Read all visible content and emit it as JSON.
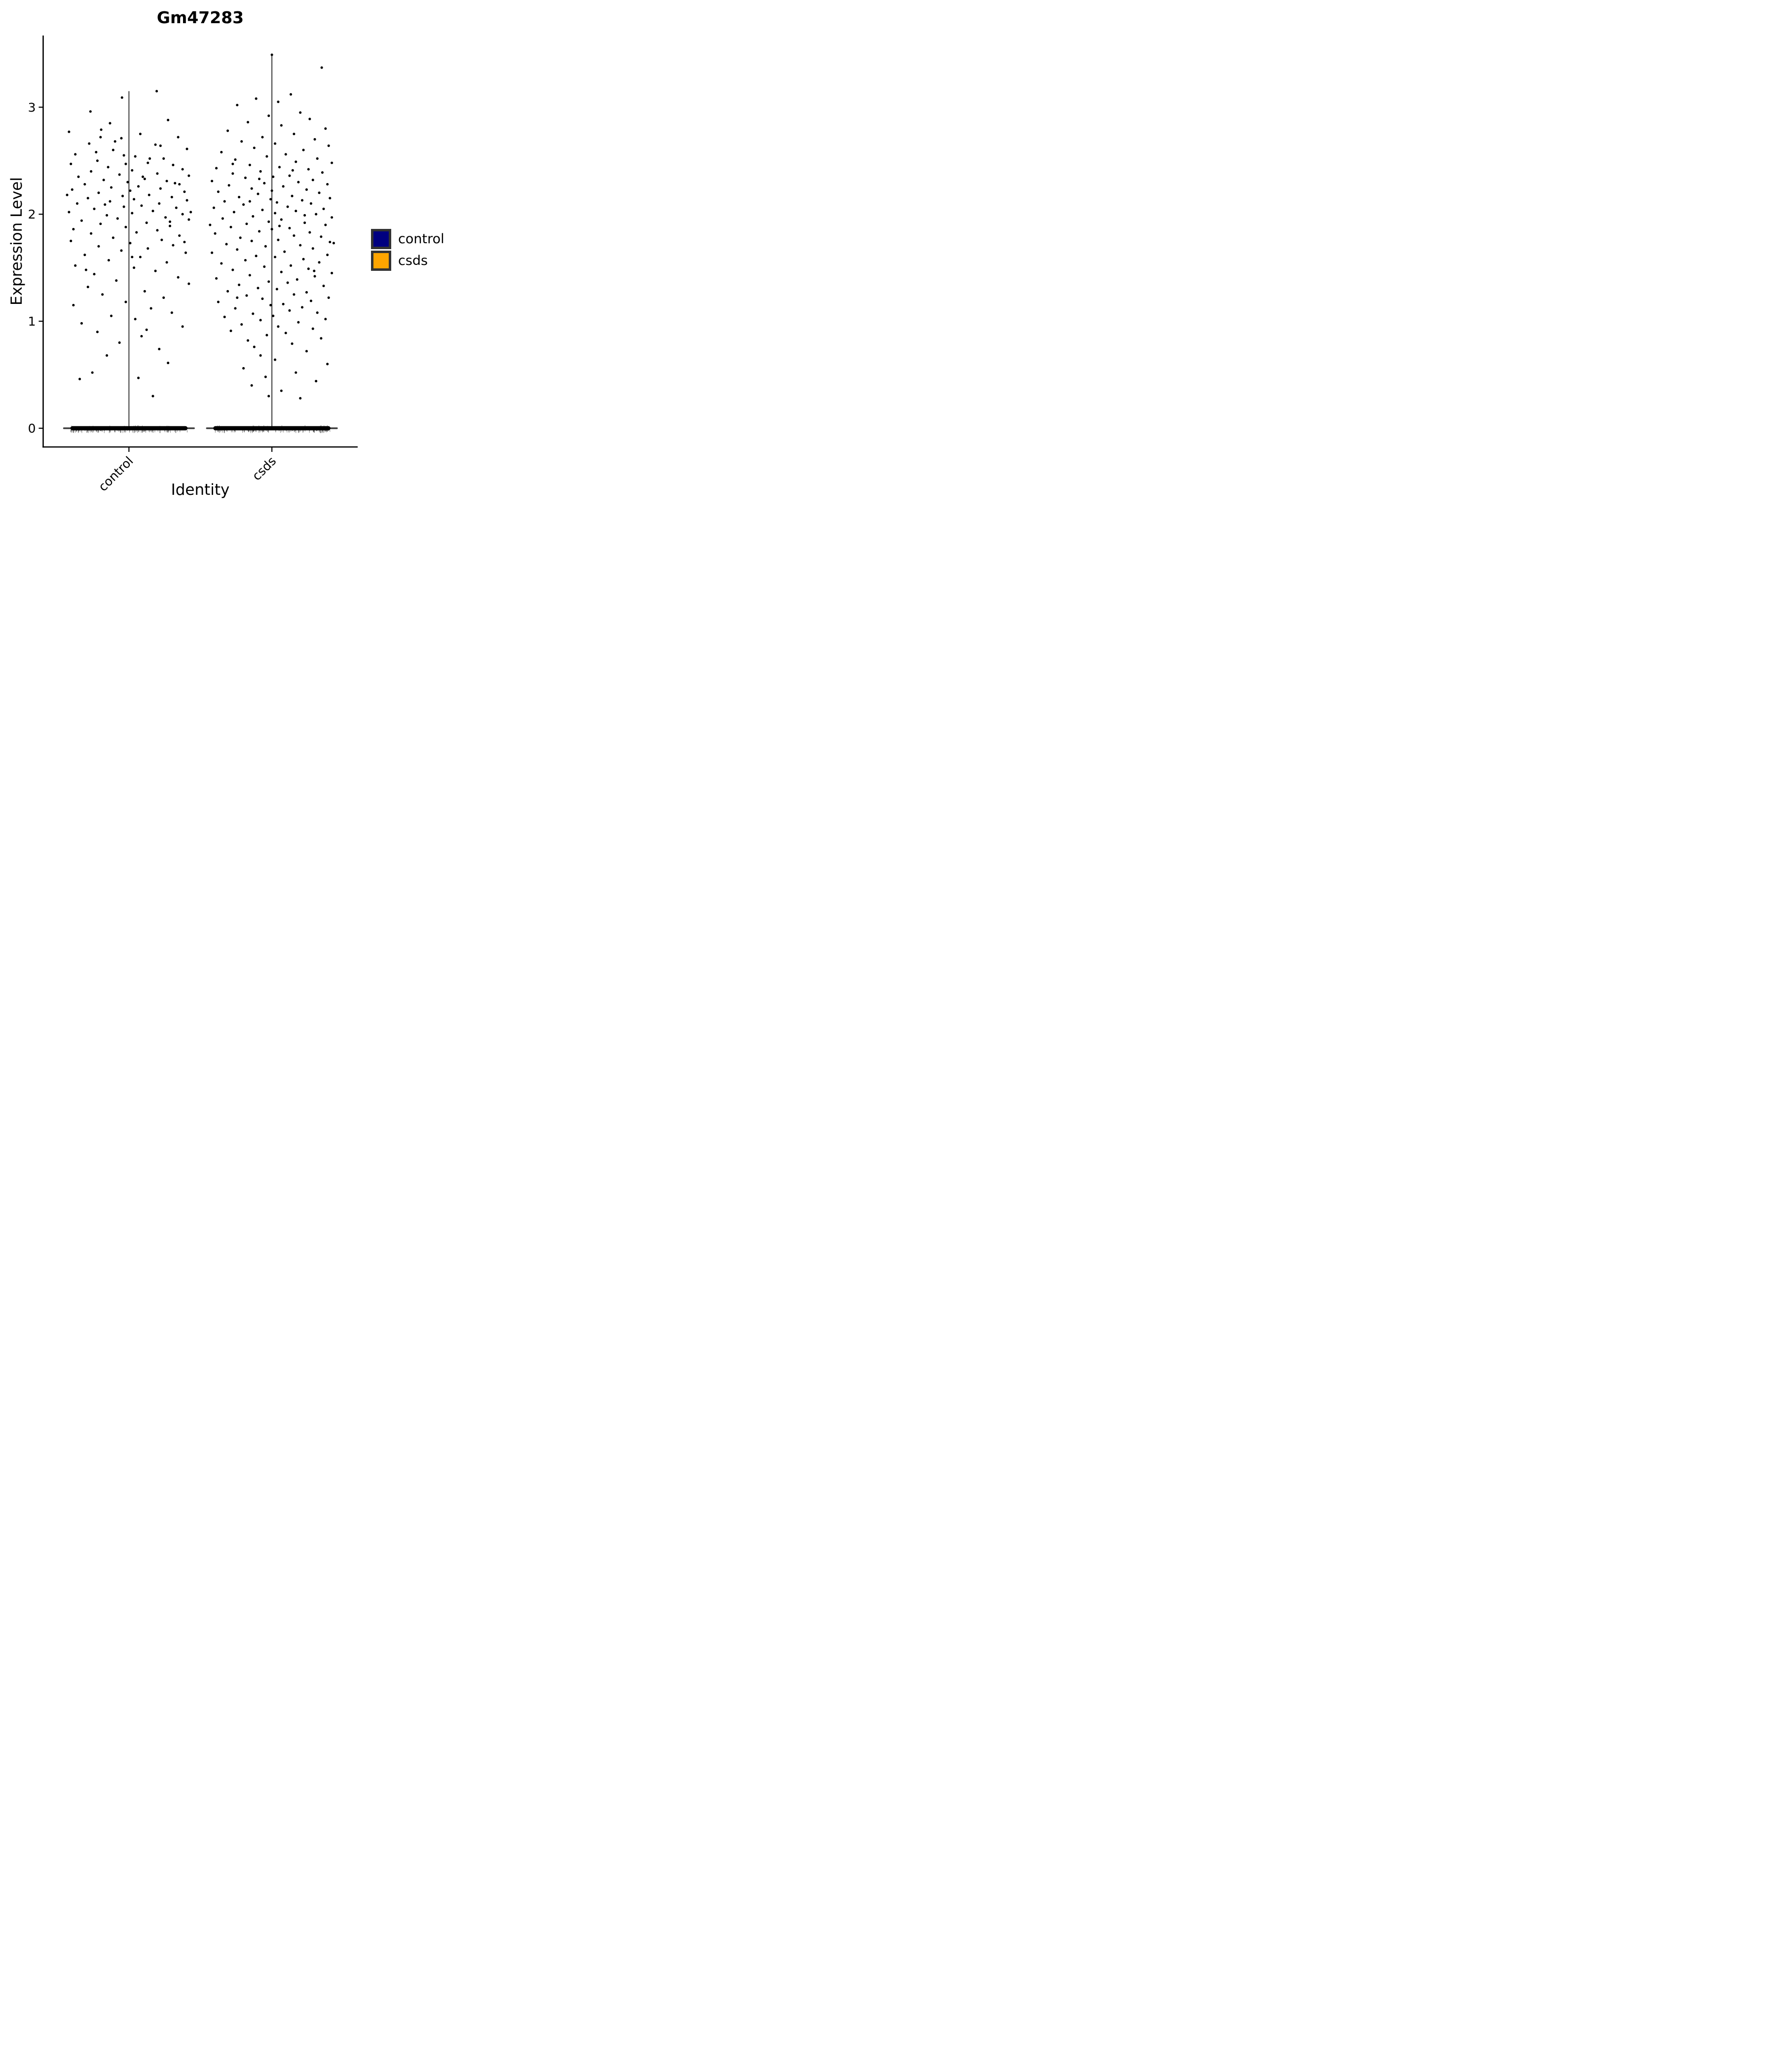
{
  "chart_data": {
    "type": "violin-jitter",
    "title": "Gm47283",
    "xlabel": "Identity",
    "ylabel": "Expression Level",
    "categories": [
      "control",
      "csds"
    ],
    "y_ticks": [
      "0",
      "1",
      "2",
      "3"
    ],
    "y_tick_values": [
      0,
      1,
      2,
      3
    ],
    "ylim": [
      -0.175,
      3.67
    ],
    "xlim": [
      0.4,
      2.6
    ],
    "grid": false,
    "legend_position": "right",
    "colors": {
      "points": "#000000",
      "violin_line": "#3A3A3A",
      "zero_band": "#000000",
      "axis": "#000000"
    },
    "legend": [
      {
        "label": "control",
        "color": "#000080"
      },
      {
        "label": "csds",
        "color": "#FFA500"
      }
    ],
    "groups": [
      {
        "name": "control",
        "position": 1,
        "violin_halfwidth": 0.455,
        "zero_band_halfwidth": 0.41,
        "spine_max": 3.15,
        "has_mass_at_zero": true,
        "points": [
          [
            -0.61,
            2.96
          ],
          [
            0.44,
            3.15
          ],
          [
            0.62,
            2.88
          ],
          [
            -0.95,
            2.77
          ],
          [
            -0.44,
            2.79
          ],
          [
            0.18,
            2.75
          ],
          [
            0.78,
            2.72
          ],
          [
            -0.12,
            2.71
          ],
          [
            -0.63,
            2.66
          ],
          [
            0.42,
            2.65
          ],
          [
            0.92,
            2.61
          ],
          [
            -0.25,
            2.6
          ],
          [
            -0.85,
            2.56
          ],
          [
            0.1,
            2.54
          ],
          [
            0.55,
            2.52
          ],
          [
            -0.5,
            2.5
          ],
          [
            0.3,
            2.48
          ],
          [
            -0.05,
            2.47
          ],
          [
            0.7,
            2.46
          ],
          [
            -0.92,
            2.47
          ],
          [
            -0.33,
            2.44
          ],
          [
            0.85,
            2.42
          ],
          [
            0.05,
            2.41
          ],
          [
            -0.6,
            2.4
          ],
          [
            0.45,
            2.38
          ],
          [
            -0.15,
            2.37
          ],
          [
            0.95,
            2.36
          ],
          [
            -0.8,
            2.35
          ],
          [
            0.25,
            2.33
          ],
          [
            -0.4,
            2.32
          ],
          [
            0.6,
            2.31
          ],
          [
            -0.02,
            2.3
          ],
          [
            0.8,
            2.28
          ],
          [
            -0.7,
            2.28
          ],
          [
            0.15,
            2.26
          ],
          [
            -0.28,
            2.25
          ],
          [
            0.5,
            2.24
          ],
          [
            -0.9,
            2.23
          ],
          [
            0.02,
            2.22
          ],
          [
            0.88,
            2.21
          ],
          [
            -0.48,
            2.2
          ],
          [
            0.32,
            2.18
          ],
          [
            -0.1,
            2.17
          ],
          [
            0.68,
            2.16
          ],
          [
            -0.65,
            2.15
          ],
          [
            0.08,
            2.14
          ],
          [
            0.92,
            2.13
          ],
          [
            -0.3,
            2.12
          ],
          [
            0.48,
            2.1
          ],
          [
            -0.82,
            2.1
          ],
          [
            0.2,
            2.08
          ],
          [
            -0.08,
            2.07
          ],
          [
            0.75,
            2.06
          ],
          [
            -0.55,
            2.05
          ],
          [
            0.38,
            2.03
          ],
          [
            -0.95,
            2.02
          ],
          [
            0.05,
            2.01
          ],
          [
            0.85,
            2.0
          ],
          [
            -0.35,
            1.99
          ],
          [
            0.58,
            1.97
          ],
          [
            -0.18,
            1.96
          ],
          [
            0.95,
            1.95
          ],
          [
            -0.75,
            1.94
          ],
          [
            0.28,
            1.92
          ],
          [
            -0.45,
            1.91
          ],
          [
            0.65,
            1.89
          ],
          [
            -0.05,
            1.88
          ],
          [
            -0.88,
            1.86
          ],
          [
            0.45,
            1.85
          ],
          [
            0.12,
            1.83
          ],
          [
            -0.6,
            1.82
          ],
          [
            0.8,
            1.8
          ],
          [
            -0.25,
            1.78
          ],
          [
            0.52,
            1.76
          ],
          [
            -0.92,
            1.75
          ],
          [
            0.02,
            1.73
          ],
          [
            0.7,
            1.71
          ],
          [
            -0.48,
            1.7
          ],
          [
            0.3,
            1.68
          ],
          [
            -0.12,
            1.66
          ],
          [
            0.9,
            1.64
          ],
          [
            -0.7,
            1.62
          ],
          [
            0.18,
            1.6
          ],
          [
            -0.32,
            1.57
          ],
          [
            0.6,
            1.55
          ],
          [
            -0.85,
            1.52
          ],
          [
            0.08,
            1.5
          ],
          [
            0.42,
            1.47
          ],
          [
            -0.55,
            1.44
          ],
          [
            0.78,
            1.41
          ],
          [
            -0.2,
            1.38
          ],
          [
            0.95,
            1.35
          ],
          [
            -0.65,
            1.32
          ],
          [
            0.25,
            1.28
          ],
          [
            -0.42,
            1.25
          ],
          [
            0.55,
            1.22
          ],
          [
            -0.05,
            1.18
          ],
          [
            -0.88,
            1.15
          ],
          [
            0.35,
            1.12
          ],
          [
            0.68,
            1.08
          ],
          [
            -0.28,
            1.05
          ],
          [
            0.1,
            1.02
          ],
          [
            -0.75,
            0.98
          ],
          [
            0.85,
            0.95
          ],
          [
            -0.5,
            0.9
          ],
          [
            0.2,
            0.86
          ],
          [
            -0.15,
            0.8
          ],
          [
            0.48,
            0.74
          ],
          [
            -0.35,
            0.68
          ],
          [
            0.62,
            0.61
          ],
          [
            -0.58,
            0.52
          ],
          [
            0.15,
            0.47
          ],
          [
            -0.78,
            0.46
          ],
          [
            0.38,
            0.3
          ],
          [
            0.05,
            1.6
          ],
          [
            -0.38,
            2.09
          ],
          [
            0.22,
            2.35
          ],
          [
            -0.52,
            2.58
          ],
          [
            0.65,
            1.93
          ],
          [
            -0.98,
            2.18
          ],
          [
            0.33,
            2.52
          ],
          [
            -0.22,
            2.68
          ],
          [
            0.73,
            2.29
          ],
          [
            0.5,
            2.64
          ],
          [
            -0.68,
            1.48
          ],
          [
            0.88,
            1.74
          ],
          [
            -0.08,
            2.55
          ],
          [
            0.28,
            0.92
          ],
          [
            -0.45,
            2.72
          ],
          [
            0.98,
            2.02
          ],
          [
            -0.11,
            3.09
          ],
          [
            -0.3,
            2.85
          ]
        ]
      },
      {
        "name": "csds",
        "position": 2,
        "violin_halfwidth": 0.455,
        "zero_band_halfwidth": 0.41,
        "spine_max": 3.49,
        "has_mass_at_zero": true,
        "points": [
          [
            0.0,
            3.49
          ],
          [
            0.79,
            3.37
          ],
          [
            0.3,
            3.12
          ],
          [
            -0.25,
            3.08
          ],
          [
            0.1,
            3.05
          ],
          [
            -0.55,
            3.02
          ],
          [
            0.45,
            2.95
          ],
          [
            -0.05,
            2.92
          ],
          [
            0.6,
            2.89
          ],
          [
            -0.38,
            2.86
          ],
          [
            0.15,
            2.83
          ],
          [
            0.85,
            2.8
          ],
          [
            -0.7,
            2.78
          ],
          [
            0.35,
            2.75
          ],
          [
            -0.15,
            2.72
          ],
          [
            0.68,
            2.7
          ],
          [
            -0.48,
            2.68
          ],
          [
            0.05,
            2.66
          ],
          [
            0.9,
            2.64
          ],
          [
            -0.28,
            2.62
          ],
          [
            0.5,
            2.6
          ],
          [
            -0.8,
            2.58
          ],
          [
            0.22,
            2.56
          ],
          [
            -0.08,
            2.54
          ],
          [
            0.72,
            2.52
          ],
          [
            -0.58,
            2.51
          ],
          [
            0.38,
            2.49
          ],
          [
            0.95,
            2.48
          ],
          [
            -0.35,
            2.46
          ],
          [
            0.12,
            2.44
          ],
          [
            -0.88,
            2.43
          ],
          [
            0.58,
            2.42
          ],
          [
            -0.18,
            2.4
          ],
          [
            0.8,
            2.39
          ],
          [
            -0.62,
            2.38
          ],
          [
            0.28,
            2.36
          ],
          [
            0.02,
            2.35
          ],
          [
            -0.42,
            2.34
          ],
          [
            0.65,
            2.32
          ],
          [
            -0.95,
            2.31
          ],
          [
            0.42,
            2.3
          ],
          [
            -0.12,
            2.29
          ],
          [
            0.88,
            2.28
          ],
          [
            -0.68,
            2.27
          ],
          [
            0.18,
            2.26
          ],
          [
            -0.32,
            2.24
          ],
          [
            0.55,
            2.23
          ],
          [
            0.0,
            2.22
          ],
          [
            -0.85,
            2.21
          ],
          [
            0.75,
            2.2
          ],
          [
            -0.22,
            2.19
          ],
          [
            0.32,
            2.17
          ],
          [
            -0.52,
            2.16
          ],
          [
            0.92,
            2.15
          ],
          [
            -0.02,
            2.14
          ],
          [
            0.48,
            2.13
          ],
          [
            -0.75,
            2.12
          ],
          [
            0.08,
            2.11
          ],
          [
            0.62,
            2.1
          ],
          [
            -0.45,
            2.09
          ],
          [
            0.25,
            2.07
          ],
          [
            -0.92,
            2.06
          ],
          [
            0.82,
            2.05
          ],
          [
            -0.15,
            2.04
          ],
          [
            0.38,
            2.03
          ],
          [
            -0.6,
            2.02
          ],
          [
            0.05,
            2.01
          ],
          [
            0.7,
            2.0
          ],
          [
            -0.3,
            1.98
          ],
          [
            0.95,
            1.97
          ],
          [
            -0.78,
            1.96
          ],
          [
            0.15,
            1.95
          ],
          [
            -0.05,
            1.93
          ],
          [
            0.52,
            1.92
          ],
          [
            -0.4,
            1.91
          ],
          [
            0.85,
            1.9
          ],
          [
            -0.65,
            1.88
          ],
          [
            0.28,
            1.87
          ],
          [
            0.0,
            1.86
          ],
          [
            -0.2,
            1.84
          ],
          [
            0.6,
            1.83
          ],
          [
            -0.9,
            1.82
          ],
          [
            0.35,
            1.8
          ],
          [
            0.78,
            1.79
          ],
          [
            -0.5,
            1.78
          ],
          [
            0.1,
            1.76
          ],
          [
            -0.32,
            1.75
          ],
          [
            0.92,
            1.74
          ],
          [
            -0.72,
            1.72
          ],
          [
            0.45,
            1.71
          ],
          [
            -0.1,
            1.7
          ],
          [
            0.65,
            1.68
          ],
          [
            -0.55,
            1.67
          ],
          [
            0.2,
            1.65
          ],
          [
            -0.95,
            1.64
          ],
          [
            0.88,
            1.62
          ],
          [
            -0.25,
            1.61
          ],
          [
            0.05,
            1.6
          ],
          [
            0.5,
            1.58
          ],
          [
            -0.42,
            1.57
          ],
          [
            0.75,
            1.55
          ],
          [
            -0.8,
            1.54
          ],
          [
            0.3,
            1.52
          ],
          [
            -0.12,
            1.51
          ],
          [
            0.58,
            1.49
          ],
          [
            -0.62,
            1.48
          ],
          [
            0.15,
            1.46
          ],
          [
            0.95,
            1.45
          ],
          [
            -0.35,
            1.43
          ],
          [
            0.68,
            1.42
          ],
          [
            -0.88,
            1.4
          ],
          [
            0.4,
            1.39
          ],
          [
            -0.05,
            1.37
          ],
          [
            0.25,
            1.36
          ],
          [
            -0.52,
            1.34
          ],
          [
            0.82,
            1.33
          ],
          [
            -0.22,
            1.31
          ],
          [
            0.08,
            1.3
          ],
          [
            -0.7,
            1.28
          ],
          [
            0.55,
            1.27
          ],
          [
            0.35,
            1.25
          ],
          [
            -0.4,
            1.24
          ],
          [
            0.9,
            1.22
          ],
          [
            -0.15,
            1.21
          ],
          [
            0.62,
            1.19
          ],
          [
            -0.85,
            1.18
          ],
          [
            0.18,
            1.16
          ],
          [
            -0.02,
            1.15
          ],
          [
            0.48,
            1.13
          ],
          [
            -0.58,
            1.12
          ],
          [
            0.28,
            1.1
          ],
          [
            0.72,
            1.08
          ],
          [
            -0.3,
            1.07
          ],
          [
            0.02,
            1.05
          ],
          [
            -0.75,
            1.04
          ],
          [
            0.85,
            1.02
          ],
          [
            -0.18,
            1.01
          ],
          [
            0.42,
            0.99
          ],
          [
            -0.48,
            0.97
          ],
          [
            0.1,
            0.95
          ],
          [
            0.65,
            0.93
          ],
          [
            -0.65,
            0.91
          ],
          [
            0.22,
            0.89
          ],
          [
            -0.08,
            0.87
          ],
          [
            0.78,
            0.84
          ],
          [
            -0.38,
            0.82
          ],
          [
            0.32,
            0.79
          ],
          [
            -0.28,
            0.76
          ],
          [
            0.55,
            0.72
          ],
          [
            -0.18,
            0.68
          ],
          [
            0.05,
            0.64
          ],
          [
            0.88,
            0.6
          ],
          [
            -0.45,
            0.56
          ],
          [
            0.38,
            0.52
          ],
          [
            -0.1,
            0.48
          ],
          [
            0.7,
            0.44
          ],
          [
            -0.32,
            0.4
          ],
          [
            0.15,
            0.35
          ],
          [
            -0.05,
            0.3
          ],
          [
            0.45,
            0.28
          ],
          [
            -0.98,
            1.9
          ],
          [
            0.98,
            1.73
          ],
          [
            -0.62,
            2.47
          ],
          [
            0.33,
            2.41
          ],
          [
            -0.2,
            2.33
          ],
          [
            0.52,
            1.99
          ],
          [
            -0.35,
            2.12
          ],
          [
            0.12,
            1.89
          ],
          [
            0.67,
            1.47
          ],
          [
            -0.55,
            1.22
          ]
        ]
      }
    ]
  }
}
